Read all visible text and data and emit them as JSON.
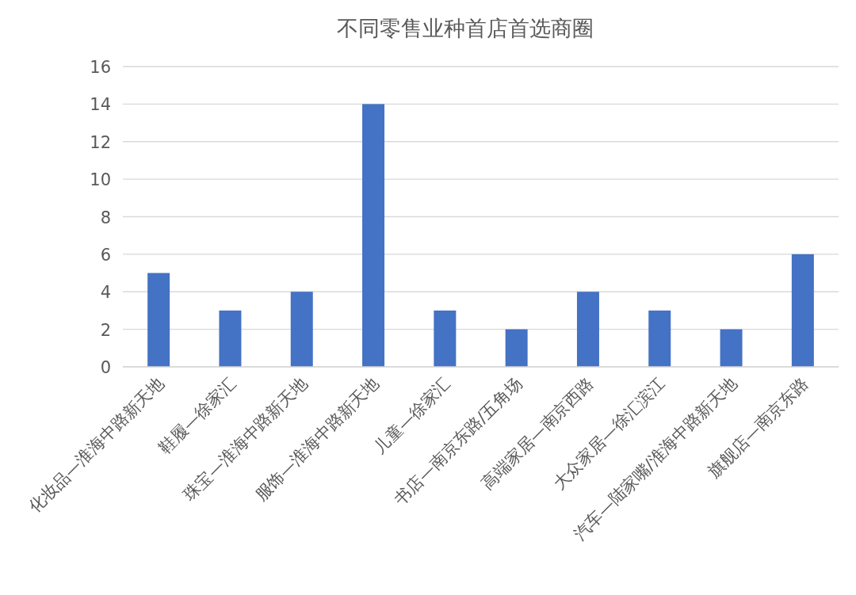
{
  "chart_data": {
    "type": "bar",
    "title": "不同零售业种首店首选商圈",
    "categories": [
      "化妆品—淮海中路新天地",
      "鞋履—徐家汇",
      "珠宝—淮海中路新天地",
      "服饰—淮海中路新天地",
      "儿童—徐家汇",
      "书店—南京东路/五角场",
      "高端家居—南京西路",
      "大众家居—徐汇滨江",
      "汽车—陆家嘴/淮海中路新天地",
      "旗舰店—南京东路"
    ],
    "values": [
      5,
      3,
      4,
      14,
      3,
      2,
      4,
      3,
      2,
      6
    ],
    "color": "#4472c4",
    "ylim": [
      0,
      16
    ],
    "yticks": [
      0,
      2,
      4,
      6,
      8,
      10,
      12,
      14,
      16
    ],
    "grid": "y"
  }
}
